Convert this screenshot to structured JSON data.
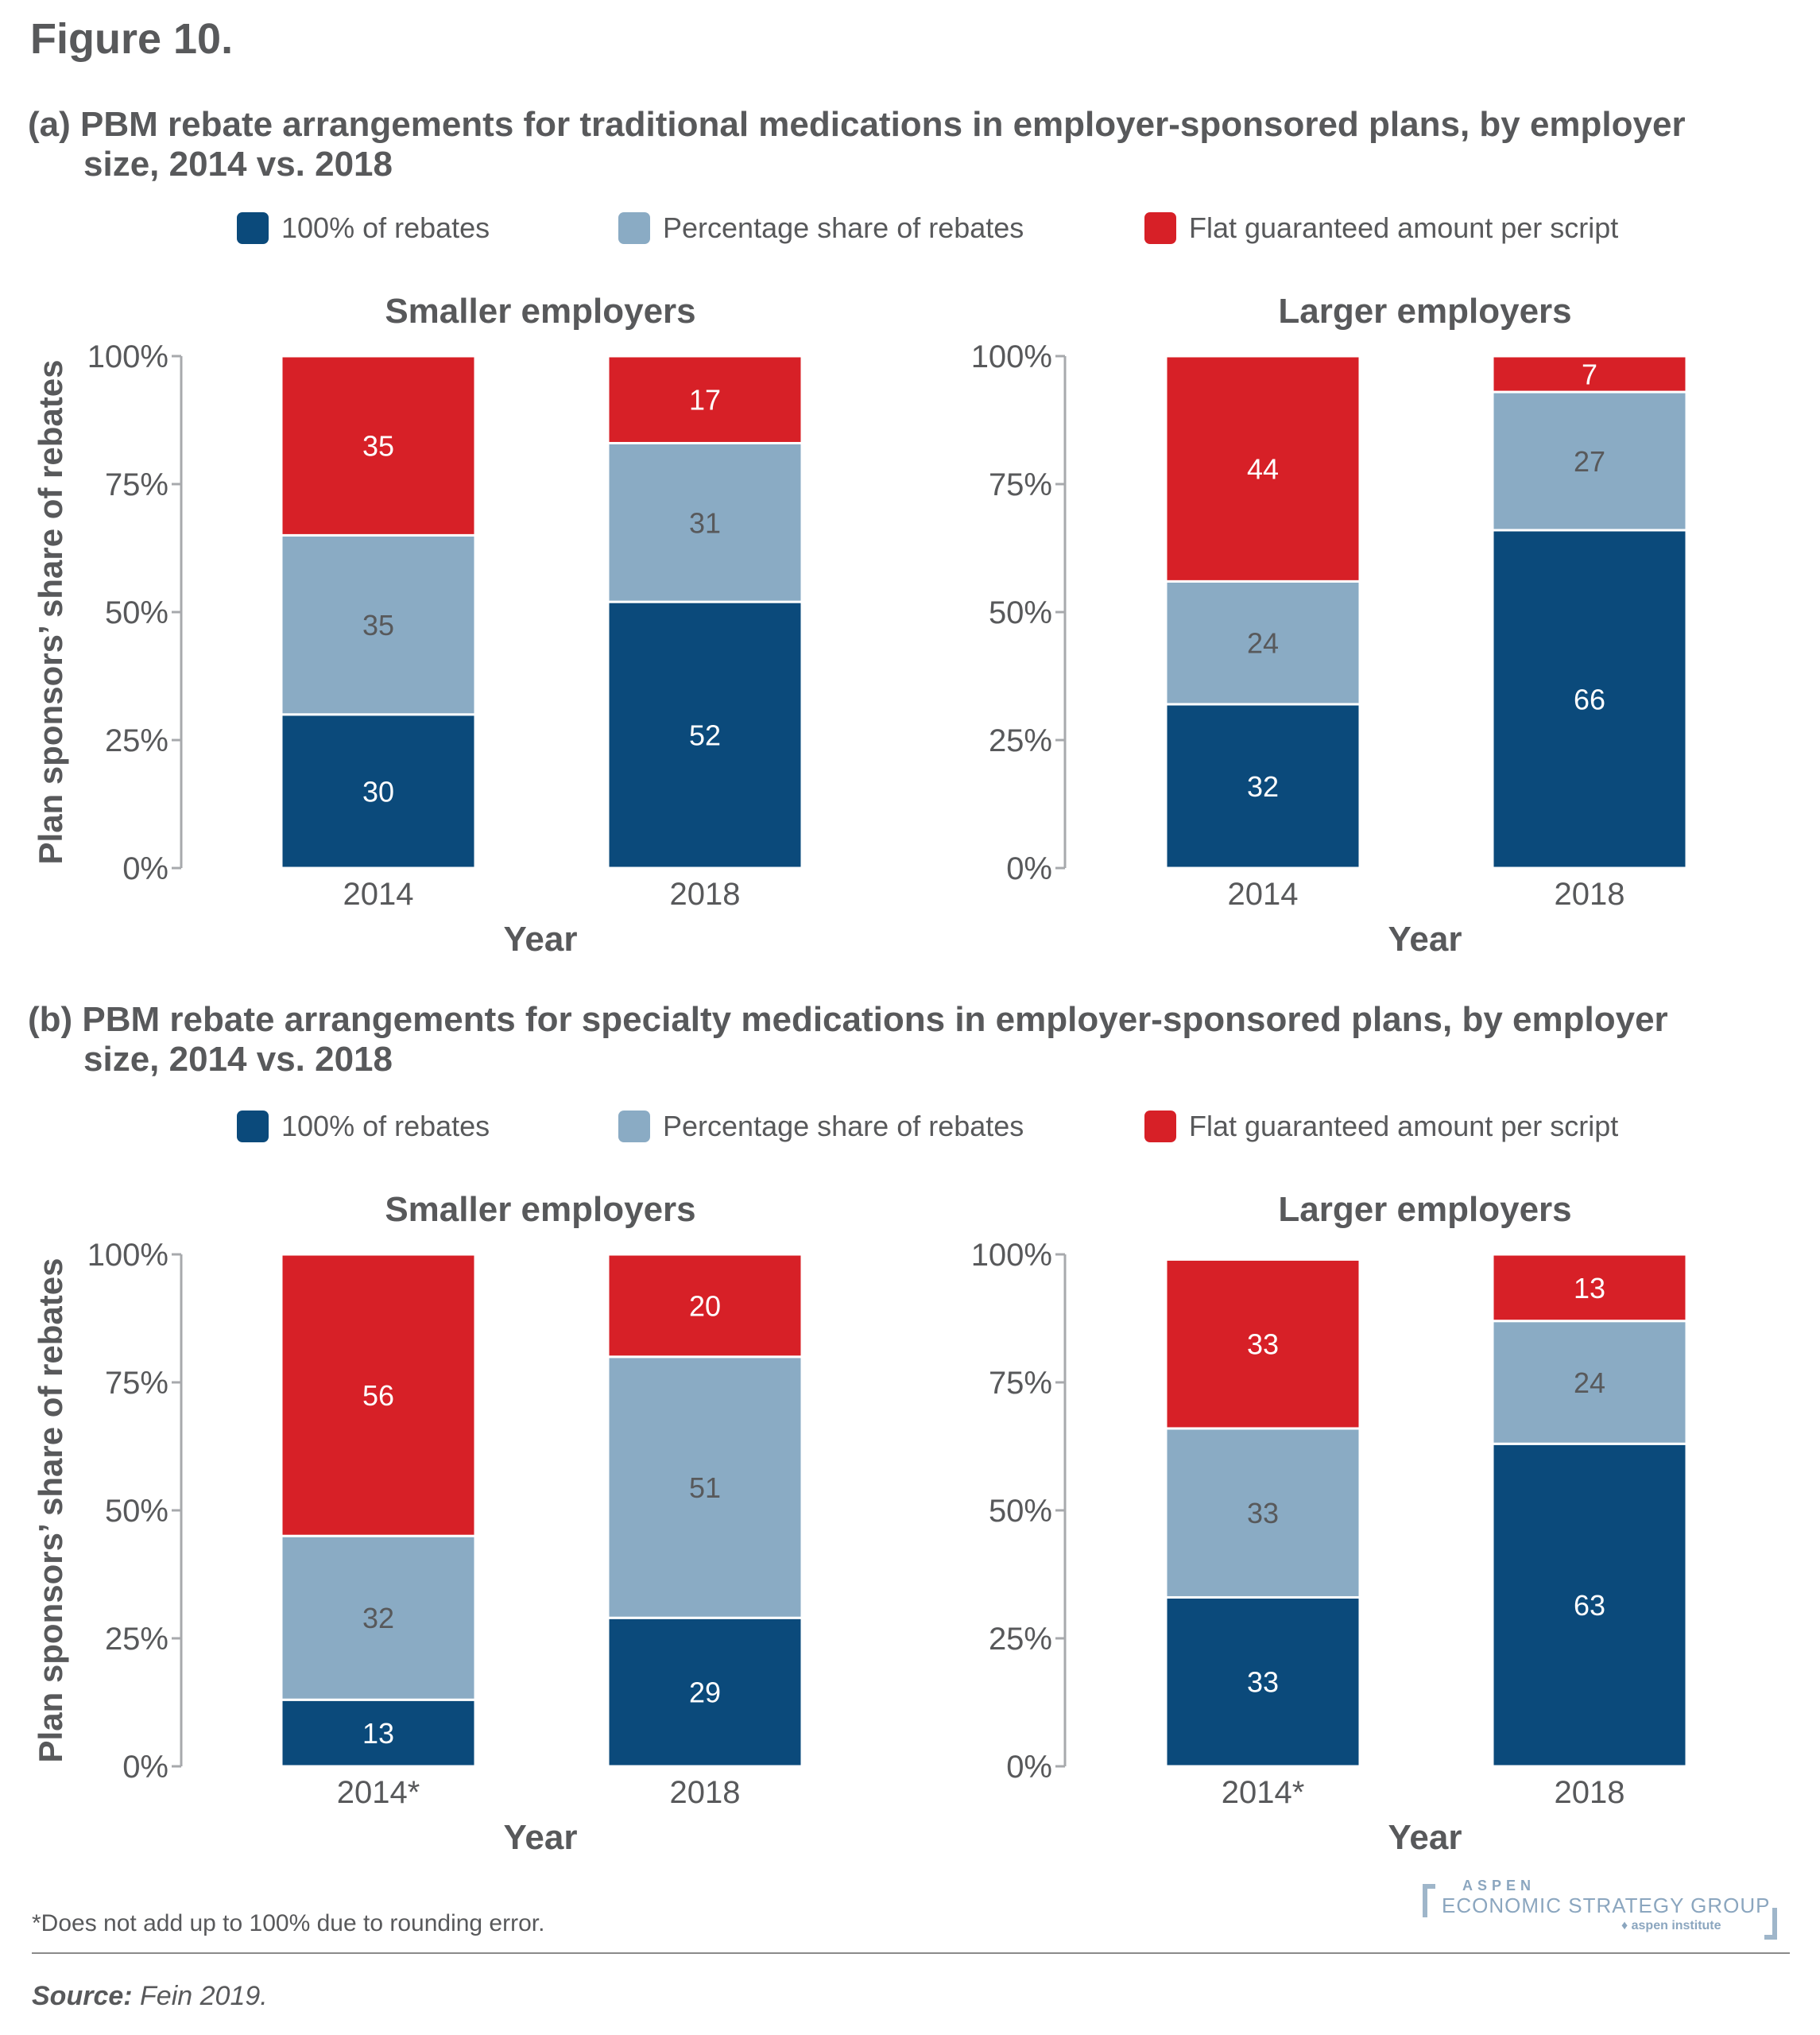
{
  "figure_title": "Figure 10.",
  "colors": {
    "full_rebates": "#0b4a7b",
    "percentage_share": "#8aabc4",
    "flat_guaranteed": "#d72027",
    "text": "#58595b",
    "axis": "#a7a9ac"
  },
  "legend": [
    {
      "label": "100% of rebates",
      "color": "#0b4a7b"
    },
    {
      "label": "Percentage share of rebates",
      "color": "#8aabc4"
    },
    {
      "label": "Flat guaranteed amount per script",
      "color": "#d72027"
    }
  ],
  "footnote": "*Does not add up to 100% due to rounding error.",
  "source_label": "Source:",
  "source_text": " Fein 2019.",
  "logo": {
    "line1": "ASPEN",
    "line2": "ECONOMIC STRATEGY GROUP",
    "line3": "aspen institute"
  },
  "chart_data": [
    {
      "type": "bar",
      "stacked": true,
      "panel": "a",
      "title_line1": "(a) PBM rebate arrangements for traditional medications in employer-sponsored plans, by employer",
      "title_line2": "size, 2014 vs. 2018",
      "subplots": [
        {
          "title": "Smaller employers",
          "categories": [
            "2014",
            "2018"
          ],
          "series": [
            {
              "name": "100% of rebates",
              "values": [
                30,
                52
              ]
            },
            {
              "name": "Percentage share of rebates",
              "values": [
                35,
                31
              ]
            },
            {
              "name": "Flat guaranteed amount per script",
              "values": [
                35,
                17
              ]
            }
          ],
          "xlabel": "Year",
          "ylabel": "Plan sponsors’ share of rebates",
          "ylim": [
            0,
            100
          ],
          "yticks": [
            "0%",
            "25%",
            "50%",
            "75%",
            "100%"
          ]
        },
        {
          "title": "Larger employers",
          "categories": [
            "2014",
            "2018"
          ],
          "series": [
            {
              "name": "100% of rebates",
              "values": [
                32,
                66
              ]
            },
            {
              "name": "Percentage share of rebates",
              "values": [
                24,
                27
              ]
            },
            {
              "name": "Flat guaranteed amount per script",
              "values": [
                44,
                7
              ]
            }
          ],
          "xlabel": "Year",
          "ylabel": "",
          "ylim": [
            0,
            100
          ],
          "yticks": [
            "0%",
            "25%",
            "50%",
            "75%",
            "100%"
          ]
        }
      ],
      "legend_position": "top"
    },
    {
      "type": "bar",
      "stacked": true,
      "panel": "b",
      "title_line1": "(b) PBM rebate arrangements for specialty medications in employer-sponsored plans, by employer",
      "title_line2": "size, 2014 vs. 2018",
      "subplots": [
        {
          "title": "Smaller employers",
          "categories": [
            "2014*",
            "2018"
          ],
          "series": [
            {
              "name": "100% of rebates",
              "values": [
                13,
                29
              ]
            },
            {
              "name": "Percentage share of rebates",
              "values": [
                32,
                51
              ]
            },
            {
              "name": "Flat guaranteed amount per script",
              "values": [
                56,
                20
              ]
            }
          ],
          "xlabel": "Year",
          "ylabel": "Plan sponsors’ share of rebates",
          "ylim": [
            0,
            100
          ],
          "yticks": [
            "0%",
            "25%",
            "50%",
            "75%",
            "100%"
          ]
        },
        {
          "title": "Larger employers",
          "categories": [
            "2014*",
            "2018"
          ],
          "series": [
            {
              "name": "100% of rebates",
              "values": [
                33,
                63
              ]
            },
            {
              "name": "Percentage share of rebates",
              "values": [
                33,
                24
              ]
            },
            {
              "name": "Flat guaranteed amount per script",
              "values": [
                33,
                13
              ]
            }
          ],
          "xlabel": "Year",
          "ylabel": "",
          "ylim": [
            0,
            100
          ],
          "yticks": [
            "0%",
            "25%",
            "50%",
            "75%",
            "100%"
          ]
        }
      ],
      "legend_position": "top"
    }
  ]
}
